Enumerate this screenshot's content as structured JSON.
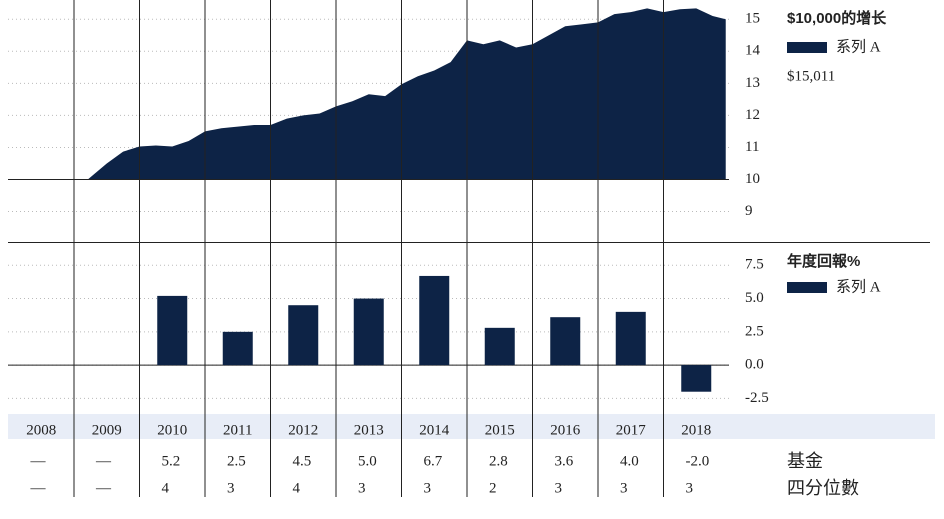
{
  "chart_data": [
    {
      "type": "area",
      "title": "$10,000的增长",
      "end_label": "$15,011",
      "series": [
        {
          "name": "系列 A",
          "color": "#0d2346",
          "x": [
            2009.21,
            2009.5,
            2009.75,
            2010.0,
            2010.25,
            2010.5,
            2010.75,
            2011.0,
            2011.25,
            2011.5,
            2011.75,
            2012.0,
            2012.25,
            2012.5,
            2012.75,
            2013.0,
            2013.25,
            2013.5,
            2013.75,
            2014.0,
            2014.25,
            2014.5,
            2014.75,
            2015.0,
            2015.25,
            2015.5,
            2015.75,
            2016.0,
            2016.25,
            2016.5,
            2016.75,
            2017.0,
            2017.25,
            2017.5,
            2017.75,
            2018.0,
            2018.25,
            2018.5,
            2018.75,
            2018.95
          ],
          "values": [
            10.0,
            10.5,
            10.87,
            11.03,
            11.06,
            11.03,
            11.2,
            11.5,
            11.6,
            11.65,
            11.7,
            11.7,
            11.9,
            12.0,
            12.06,
            12.28,
            12.44,
            12.66,
            12.6,
            12.97,
            13.22,
            13.4,
            13.66,
            14.34,
            14.22,
            14.34,
            14.12,
            14.22,
            14.5,
            14.78,
            14.84,
            14.9,
            15.16,
            15.22,
            15.34,
            15.22,
            15.31,
            15.34,
            15.1,
            15.0
          ]
        }
      ],
      "xlim": [
        2008,
        2019
      ],
      "ylim": [
        8.05,
        15.6
      ],
      "yticks": [
        9,
        10,
        11,
        12,
        13,
        14,
        15
      ],
      "grid": true
    },
    {
      "type": "bar",
      "title": "年度回報%",
      "categories": [
        "2008",
        "2009",
        "2010",
        "2011",
        "2012",
        "2013",
        "2014",
        "2015",
        "2016",
        "2017",
        "2018"
      ],
      "series": [
        {
          "name": "系列 A",
          "color": "#0d2346",
          "values": [
            null,
            null,
            5.2,
            2.5,
            4.5,
            5.0,
            6.7,
            2.8,
            3.6,
            4.0,
            -2.0
          ]
        }
      ],
      "ylim": [
        -3.6,
        9.1
      ],
      "yticks": [
        7.5,
        {
          "value": 5,
          "label": "5.0"
        },
        2.5,
        {
          "value": 0,
          "label": "0.0"
        },
        -2.5
      ],
      "grid": true
    }
  ],
  "table": {
    "rows": [
      {
        "label": "基金",
        "cells": [
          "—",
          "—",
          "5.2",
          "2.5",
          "4.5",
          "5.0",
          "6.7",
          "2.8",
          "3.6",
          "4.0",
          "-2.0"
        ]
      },
      {
        "label": "四分位數",
        "cells": [
          "—",
          "—",
          "4",
          "3",
          "4",
          "3",
          "3",
          "2",
          "3",
          "3",
          "3"
        ]
      }
    ]
  }
}
